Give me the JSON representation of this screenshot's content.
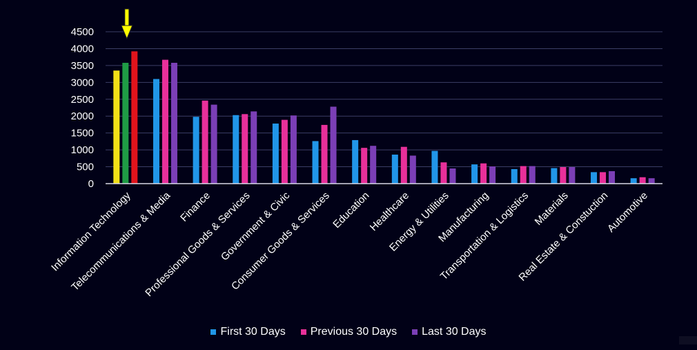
{
  "chart_data": {
    "type": "bar",
    "categories": [
      "Information Technology",
      "Telecommunications & Media",
      "Finance",
      "Professional Goods & Services",
      "Government & Civic",
      "Consumer Goods & Services",
      "Education",
      "Healthcare",
      "Energy & Utilities",
      "Manufacturing",
      "Transportation & Logistics",
      "Materials",
      "Real Estate & Constuction",
      "Automotive"
    ],
    "series": [
      {
        "name": "First 30 Days",
        "color": "#2196e8",
        "values": [
          3350,
          3100,
          1980,
          2030,
          1780,
          1260,
          1290,
          860,
          970,
          570,
          430,
          460,
          340,
          160
        ]
      },
      {
        "name": "Previous 30 Days",
        "color": "#e8309a",
        "values": [
          3580,
          3670,
          2460,
          2060,
          1890,
          1740,
          1060,
          1090,
          630,
          600,
          520,
          490,
          340,
          190
        ]
      },
      {
        "name": "Last 30 Days",
        "color": "#7b3fb6",
        "values": [
          3920,
          3580,
          2340,
          2140,
          2020,
          2280,
          1120,
          830,
          450,
          510,
          520,
          490,
          370,
          160
        ]
      }
    ],
    "highlight": {
      "category": "Information Technology",
      "colors": [
        "#f2e017",
        "#1f9c45",
        "#e0141c"
      ],
      "marker": "arrow-down",
      "marker_color": "#ffff00"
    },
    "yticks": [
      "0",
      "500",
      "1000",
      "1500",
      "2000",
      "2500",
      "3000",
      "3500",
      "4000",
      "4500"
    ],
    "ylim": [
      0,
      4500
    ],
    "grid": true,
    "legend": "bottom",
    "title": "",
    "xlabel": "",
    "ylabel": ""
  }
}
